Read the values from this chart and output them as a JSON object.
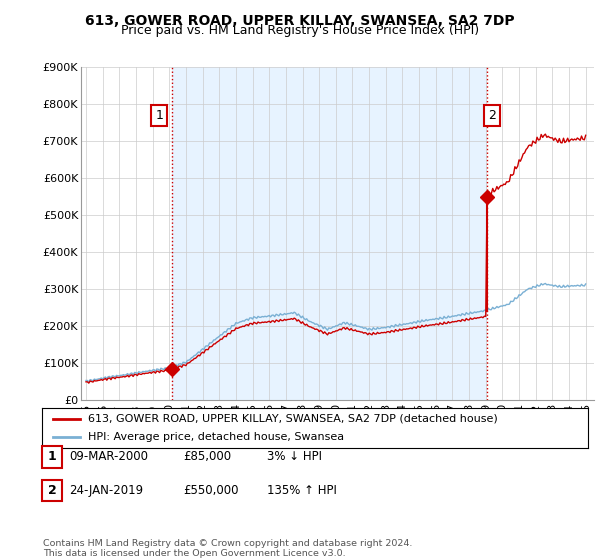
{
  "title": "613, GOWER ROAD, UPPER KILLAY, SWANSEA, SA2 7DP",
  "subtitle": "Price paid vs. HM Land Registry's House Price Index (HPI)",
  "ylim": [
    0,
    900000
  ],
  "yticks": [
    0,
    100000,
    200000,
    300000,
    400000,
    500000,
    600000,
    700000,
    800000,
    900000
  ],
  "ytick_labels": [
    "£0",
    "£100K",
    "£200K",
    "£300K",
    "£400K",
    "£500K",
    "£600K",
    "£700K",
    "£800K",
    "£900K"
  ],
  "sale1_date": 2000.19,
  "sale1_price": 85000,
  "sale1_label": "1",
  "sale2_date": 2019.07,
  "sale2_price": 550000,
  "sale2_label": "2",
  "sale_color": "#cc0000",
  "hpi_color": "#7ab0d4",
  "vline_color": "#cc0000",
  "bg_shade_color": "#ddeeff",
  "legend_sale_label": "613, GOWER ROAD, UPPER KILLAY, SWANSEA, SA2 7DP (detached house)",
  "legend_hpi_label": "HPI: Average price, detached house, Swansea",
  "annotation1": [
    "1",
    "09-MAR-2000",
    "£85,000",
    "3% ↓ HPI"
  ],
  "annotation2": [
    "2",
    "24-JAN-2019",
    "£550,000",
    "135% ↑ HPI"
  ],
  "footer": "Contains HM Land Registry data © Crown copyright and database right 2024.\nThis data is licensed under the Open Government Licence v3.0.",
  "background_color": "#ffffff",
  "grid_color": "#cccccc",
  "title_fontsize": 10,
  "subtitle_fontsize": 9,
  "tick_fontsize": 8,
  "legend_fontsize": 8,
  "annotation_fontsize": 8.5,
  "xlim_left": 1994.7,
  "xlim_right": 2025.5,
  "hpi_x": [
    1995.0,
    1995.08,
    1995.17,
    1995.25,
    1995.33,
    1995.42,
    1995.5,
    1995.58,
    1995.67,
    1995.75,
    1995.83,
    1995.92,
    1996.0,
    1996.08,
    1996.17,
    1996.25,
    1996.33,
    1996.42,
    1996.5,
    1996.58,
    1996.67,
    1996.75,
    1996.83,
    1996.92,
    1997.0,
    1997.08,
    1997.17,
    1997.25,
    1997.33,
    1997.42,
    1997.5,
    1997.58,
    1997.67,
    1997.75,
    1997.83,
    1997.92,
    1998.0,
    1998.08,
    1998.17,
    1998.25,
    1998.33,
    1998.42,
    1998.5,
    1998.58,
    1998.67,
    1998.75,
    1998.83,
    1998.92,
    1999.0,
    1999.08,
    1999.17,
    1999.25,
    1999.33,
    1999.42,
    1999.5,
    1999.58,
    1999.67,
    1999.75,
    1999.83,
    1999.92,
    2000.0,
    2000.08,
    2000.17,
    2000.25,
    2000.33,
    2000.42,
    2000.5,
    2000.58,
    2000.67,
    2000.75,
    2000.83,
    2000.92,
    2001.0,
    2001.08,
    2001.17,
    2001.25,
    2001.33,
    2001.42,
    2001.5,
    2001.58,
    2001.67,
    2001.75,
    2001.83,
    2001.92,
    2002.0,
    2002.08,
    2002.17,
    2002.25,
    2002.33,
    2002.42,
    2002.5,
    2002.58,
    2002.67,
    2002.75,
    2002.83,
    2002.92,
    2003.0,
    2003.08,
    2003.17,
    2003.25,
    2003.33,
    2003.42,
    2003.5,
    2003.58,
    2003.67,
    2003.75,
    2003.83,
    2003.92,
    2004.0,
    2004.08,
    2004.17,
    2004.25,
    2004.33,
    2004.42,
    2004.5,
    2004.58,
    2004.67,
    2004.75,
    2004.83,
    2004.92,
    2005.0,
    2005.08,
    2005.17,
    2005.25,
    2005.33,
    2005.42,
    2005.5,
    2005.58,
    2005.67,
    2005.75,
    2005.83,
    2005.92,
    2006.0,
    2006.08,
    2006.17,
    2006.25,
    2006.33,
    2006.42,
    2006.5,
    2006.58,
    2006.67,
    2006.75,
    2006.83,
    2006.92,
    2007.0,
    2007.08,
    2007.17,
    2007.25,
    2007.33,
    2007.42,
    2007.5,
    2007.58,
    2007.67,
    2007.75,
    2007.83,
    2007.92,
    2008.0,
    2008.08,
    2008.17,
    2008.25,
    2008.33,
    2008.42,
    2008.5,
    2008.58,
    2008.67,
    2008.75,
    2008.83,
    2008.92,
    2009.0,
    2009.08,
    2009.17,
    2009.25,
    2009.33,
    2009.42,
    2009.5,
    2009.58,
    2009.67,
    2009.75,
    2009.83,
    2009.92,
    2010.0,
    2010.08,
    2010.17,
    2010.25,
    2010.33,
    2010.42,
    2010.5,
    2010.58,
    2010.67,
    2010.75,
    2010.83,
    2010.92,
    2011.0,
    2011.08,
    2011.17,
    2011.25,
    2011.33,
    2011.42,
    2011.5,
    2011.58,
    2011.67,
    2011.75,
    2011.83,
    2011.92,
    2012.0,
    2012.08,
    2012.17,
    2012.25,
    2012.33,
    2012.42,
    2012.5,
    2012.58,
    2012.67,
    2012.75,
    2012.83,
    2012.92,
    2013.0,
    2013.08,
    2013.17,
    2013.25,
    2013.33,
    2013.42,
    2013.5,
    2013.58,
    2013.67,
    2013.75,
    2013.83,
    2013.92,
    2014.0,
    2014.08,
    2014.17,
    2014.25,
    2014.33,
    2014.42,
    2014.5,
    2014.58,
    2014.67,
    2014.75,
    2014.83,
    2014.92,
    2015.0,
    2015.08,
    2015.17,
    2015.25,
    2015.33,
    2015.42,
    2015.5,
    2015.58,
    2015.67,
    2015.75,
    2015.83,
    2015.92,
    2016.0,
    2016.08,
    2016.17,
    2016.25,
    2016.33,
    2016.42,
    2016.5,
    2016.58,
    2016.67,
    2016.75,
    2016.83,
    2016.92,
    2017.0,
    2017.08,
    2017.17,
    2017.25,
    2017.33,
    2017.42,
    2017.5,
    2017.58,
    2017.67,
    2017.75,
    2017.83,
    2017.92,
    2018.0,
    2018.08,
    2018.17,
    2018.25,
    2018.33,
    2018.42,
    2018.5,
    2018.58,
    2018.67,
    2018.75,
    2018.83,
    2018.92,
    2019.0,
    2019.08,
    2019.17,
    2019.25,
    2019.33,
    2019.42,
    2019.5,
    2019.58,
    2019.67,
    2019.75,
    2019.83,
    2019.92,
    2020.0,
    2020.08,
    2020.17,
    2020.25,
    2020.33,
    2020.42,
    2020.5,
    2020.58,
    2020.67,
    2020.75,
    2020.83,
    2020.92,
    2021.0,
    2021.08,
    2021.17,
    2021.25,
    2021.33,
    2021.42,
    2021.5,
    2021.58,
    2021.67,
    2021.75,
    2021.83,
    2021.92,
    2022.0,
    2022.08,
    2022.17,
    2022.25,
    2022.33,
    2022.42,
    2022.5,
    2022.58,
    2022.67,
    2022.75,
    2022.83,
    2022.92,
    2023.0,
    2023.08,
    2023.17,
    2023.25,
    2023.33,
    2023.42,
    2023.5,
    2023.58,
    2023.67,
    2023.75,
    2023.83,
    2023.92,
    2024.0,
    2024.08,
    2024.17,
    2024.25,
    2024.33,
    2024.42,
    2024.5,
    2024.58,
    2024.67,
    2024.75,
    2024.83,
    2024.92,
    2025.0
  ],
  "xtick_years": [
    1995,
    1996,
    1997,
    1998,
    1999,
    2000,
    2001,
    2002,
    2003,
    2004,
    2005,
    2006,
    2007,
    2008,
    2009,
    2010,
    2011,
    2012,
    2013,
    2014,
    2015,
    2016,
    2017,
    2018,
    2019,
    2020,
    2021,
    2022,
    2023,
    2024,
    2025
  ]
}
